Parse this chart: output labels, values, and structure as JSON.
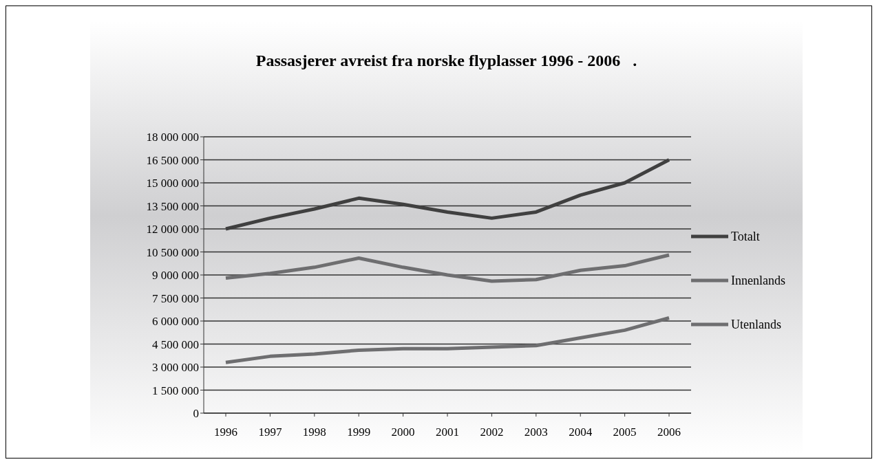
{
  "chart_data": {
    "type": "line",
    "title": "Passasjerer avreist fra norske flyplasser 1996 - 2006   .",
    "categories": [
      "1996",
      "1997",
      "1998",
      "1999",
      "2000",
      "2001",
      "2002",
      "2003",
      "2004",
      "2005",
      "2006"
    ],
    "series": [
      {
        "name": "Totalt",
        "color": "#404040",
        "values": [
          12000000,
          12700000,
          13300000,
          14000000,
          13600000,
          13100000,
          12700000,
          13100000,
          14200000,
          15000000,
          16500000
        ]
      },
      {
        "name": "Innenlands",
        "color": "#6e6e70",
        "values": [
          8800000,
          9100000,
          9500000,
          10100000,
          9500000,
          9000000,
          8600000,
          8700000,
          9300000,
          9600000,
          10300000
        ]
      },
      {
        "name": "Utenlands",
        "color": "#6e6e70",
        "values": [
          3300000,
          3700000,
          3850000,
          4100000,
          4200000,
          4200000,
          4300000,
          4400000,
          4900000,
          5400000,
          6200000
        ]
      }
    ],
    "ylim": [
      0,
      18000000
    ],
    "yticks": [
      {
        "value": 0,
        "label": "0"
      },
      {
        "value": 1500000,
        "label": "1 500 000"
      },
      {
        "value": 3000000,
        "label": "3 000 000"
      },
      {
        "value": 4500000,
        "label": "4 500 000"
      },
      {
        "value": 6000000,
        "label": "6 000 000"
      },
      {
        "value": 7500000,
        "label": "7 500 000"
      },
      {
        "value": 9000000,
        "label": "9 000 000"
      },
      {
        "value": 10500000,
        "label": "10 500 000"
      },
      {
        "value": 12000000,
        "label": "12 000 000"
      },
      {
        "value": 13500000,
        "label": "13 500 000"
      },
      {
        "value": 15000000,
        "label": "15 000 000"
      },
      {
        "value": 16500000,
        "label": "16 500 000"
      },
      {
        "value": 18000000,
        "label": "18 000 000"
      }
    ],
    "grid": "y",
    "legend": "right",
    "marker": "none",
    "line_style": "solid"
  }
}
